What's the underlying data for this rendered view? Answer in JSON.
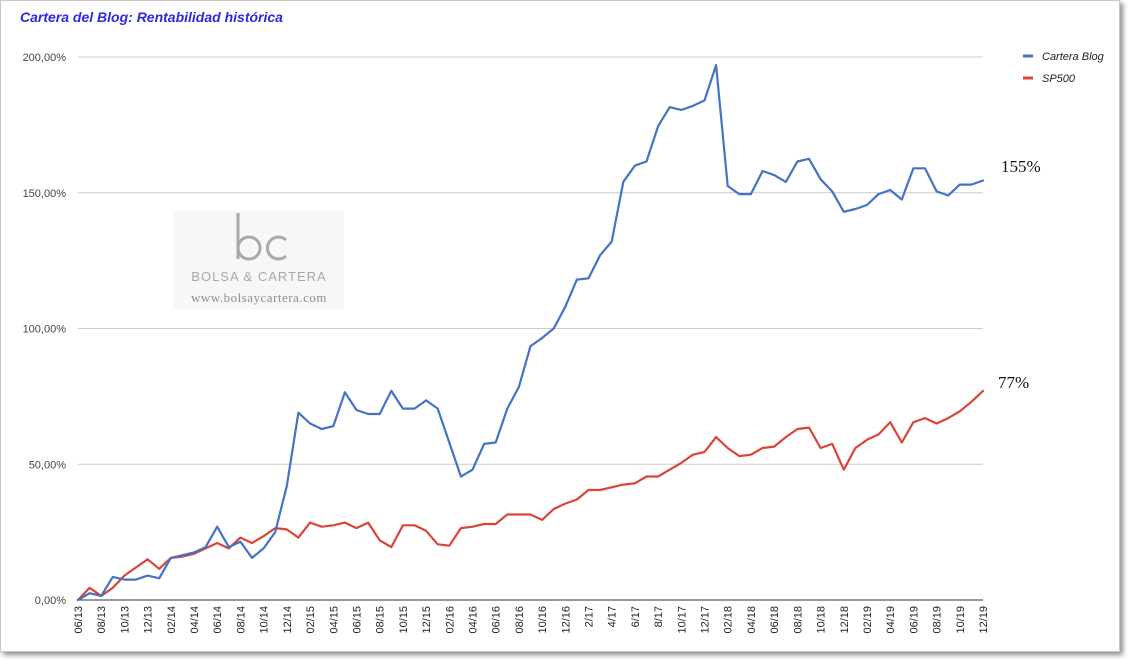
{
  "chart_data": {
    "type": "line",
    "title": "Cartera del Blog: Rentabilidad histórica",
    "ylim": [
      0,
      200
    ],
    "y_ticks": [
      "0,00%",
      "50,00%",
      "100,00%",
      "150,00%",
      "200,00%"
    ],
    "y_tick_values": [
      0,
      50,
      100,
      150,
      200
    ],
    "grid": "horizontal",
    "legend_position": "top-right",
    "x_tick_labels": [
      "06/13",
      "08/13",
      "10/13",
      "12/13",
      "02/14",
      "04/14",
      "06/14",
      "08/14",
      "10/14",
      "12/14",
      "02/15",
      "04/15",
      "06/15",
      "08/15",
      "10/15",
      "12/15",
      "02/16",
      "04/16",
      "06/16",
      "08/16",
      "10/16",
      "12/16",
      "2/17",
      "4/17",
      "6/17",
      "8/17",
      "10/17",
      "12/17",
      "02/18",
      "04/18",
      "06/18",
      "08/18",
      "10/18",
      "12/18",
      "02/19",
      "04/19",
      "06/19",
      "08/19",
      "10/19",
      "12/19"
    ],
    "series": [
      {
        "name": "Cartera Blog",
        "color": "#4472c4",
        "values": [
          0,
          2.5,
          1.5,
          8.5,
          7.5,
          7.5,
          9,
          8,
          15.5,
          16.5,
          17.5,
          19.5,
          27,
          19.5,
          21.5,
          15.5,
          19,
          25,
          42,
          69,
          65,
          63,
          64,
          76.5,
          70,
          68.5,
          68.5,
          77,
          70.5,
          70.5,
          73.5,
          70.5,
          58,
          45.5,
          48,
          57.5,
          58,
          70.5,
          78.5,
          93.5,
          96.5,
          100,
          108,
          118,
          118.5,
          127,
          132,
          154,
          160,
          161.5,
          174.5,
          181.5,
          180.5,
          182,
          184,
          197,
          152.5,
          149.5,
          149.5,
          158,
          156.5,
          154,
          161.5,
          162.5,
          155,
          150.5,
          143,
          144,
          145.5,
          149.5,
          151,
          147.5,
          159,
          159,
          150.5,
          149,
          153,
          153,
          154.5
        ]
      },
      {
        "name": "SP500",
        "color": "#db4437",
        "values": [
          0,
          4.5,
          1.5,
          4.5,
          9,
          12,
          15,
          11.5,
          15.5,
          16,
          17,
          19,
          21,
          19,
          23,
          21,
          23.5,
          26.5,
          26,
          23,
          28.5,
          27,
          27.5,
          28.5,
          26.5,
          28.5,
          22,
          19.5,
          27.5,
          27.5,
          25.5,
          20.5,
          20,
          26.5,
          27,
          28,
          28,
          31.5,
          31.5,
          31.5,
          29.5,
          33.5,
          35.5,
          37,
          40.5,
          40.5,
          41.5,
          42.5,
          43,
          45.5,
          45.5,
          48,
          50.5,
          53.5,
          54.5,
          60,
          56,
          53,
          53.5,
          56,
          56.5,
          60,
          63,
          63.5,
          56,
          57.5,
          48,
          56,
          59,
          61,
          65.5,
          58,
          65.5,
          67,
          65,
          67,
          69.5,
          73,
          77
        ]
      }
    ]
  },
  "annotations": {
    "end_label_blog": "155%",
    "end_label_sp500": "77%"
  },
  "watermark": {
    "logo_text": "bc",
    "name": "BOLSA & CARTERA",
    "url": "www.bolsaycartera.com"
  }
}
